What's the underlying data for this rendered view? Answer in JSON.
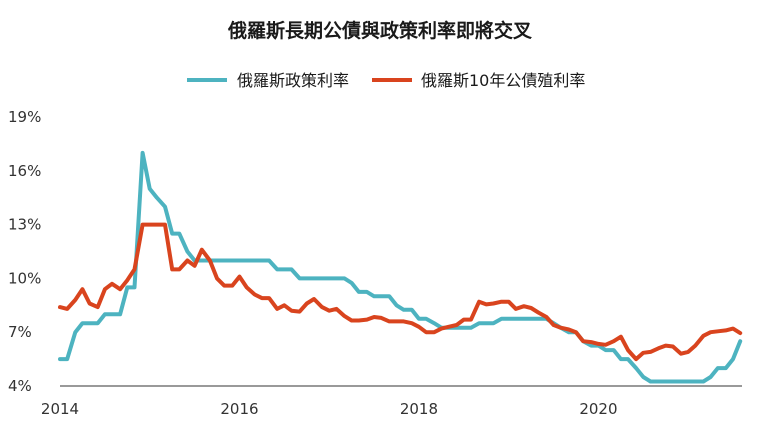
{
  "chart_data": {
    "type": "line",
    "title": "俄羅斯長期公債與政策利率即將交叉",
    "xlabel": "",
    "ylabel": "",
    "xlim": [
      2014.0,
      2021.6
    ],
    "ylim": [
      4,
      19
    ],
    "x_ticks": [
      2014,
      2016,
      2018,
      2020
    ],
    "x_tick_labels": [
      "2014",
      "2016",
      "2018",
      "2020"
    ],
    "y_ticks": [
      4,
      7,
      10,
      13,
      16,
      19
    ],
    "y_tick_labels": [
      "4%",
      "7%",
      "10%",
      "13%",
      "16%",
      "19%"
    ],
    "grid": "none",
    "legend_position": "top-center",
    "series": [
      {
        "name": "俄羅斯政策利率",
        "color": "#4db3c0",
        "points": [
          [
            2014.0,
            5.5
          ],
          [
            2014.08,
            5.5
          ],
          [
            2014.17,
            7.0
          ],
          [
            2014.25,
            7.5
          ],
          [
            2014.33,
            7.5
          ],
          [
            2014.42,
            7.5
          ],
          [
            2014.5,
            8.0
          ],
          [
            2014.58,
            8.0
          ],
          [
            2014.67,
            8.0
          ],
          [
            2014.75,
            9.5
          ],
          [
            2014.83,
            9.5
          ],
          [
            2014.92,
            17.0
          ],
          [
            2015.0,
            15.0
          ],
          [
            2015.08,
            14.5
          ],
          [
            2015.17,
            14.0
          ],
          [
            2015.25,
            12.5
          ],
          [
            2015.33,
            12.5
          ],
          [
            2015.42,
            11.5
          ],
          [
            2015.5,
            11.0
          ],
          [
            2015.58,
            11.0
          ],
          [
            2015.67,
            11.0
          ],
          [
            2015.75,
            11.0
          ],
          [
            2015.83,
            11.0
          ],
          [
            2015.92,
            11.0
          ],
          [
            2016.0,
            11.0
          ],
          [
            2016.08,
            11.0
          ],
          [
            2016.17,
            11.0
          ],
          [
            2016.25,
            11.0
          ],
          [
            2016.33,
            11.0
          ],
          [
            2016.42,
            10.5
          ],
          [
            2016.5,
            10.5
          ],
          [
            2016.58,
            10.5
          ],
          [
            2016.67,
            10.0
          ],
          [
            2016.75,
            10.0
          ],
          [
            2016.83,
            10.0
          ],
          [
            2016.92,
            10.0
          ],
          [
            2017.0,
            10.0
          ],
          [
            2017.08,
            10.0
          ],
          [
            2017.17,
            10.0
          ],
          [
            2017.25,
            9.75
          ],
          [
            2017.33,
            9.25
          ],
          [
            2017.42,
            9.25
          ],
          [
            2017.5,
            9.0
          ],
          [
            2017.58,
            9.0
          ],
          [
            2017.67,
            9.0
          ],
          [
            2017.75,
            8.5
          ],
          [
            2017.83,
            8.25
          ],
          [
            2017.92,
            8.25
          ],
          [
            2018.0,
            7.75
          ],
          [
            2018.08,
            7.75
          ],
          [
            2018.17,
            7.5
          ],
          [
            2018.25,
            7.25
          ],
          [
            2018.33,
            7.25
          ],
          [
            2018.42,
            7.25
          ],
          [
            2018.5,
            7.25
          ],
          [
            2018.58,
            7.25
          ],
          [
            2018.67,
            7.5
          ],
          [
            2018.75,
            7.5
          ],
          [
            2018.83,
            7.5
          ],
          [
            2018.92,
            7.75
          ],
          [
            2019.0,
            7.75
          ],
          [
            2019.08,
            7.75
          ],
          [
            2019.17,
            7.75
          ],
          [
            2019.25,
            7.75
          ],
          [
            2019.33,
            7.75
          ],
          [
            2019.42,
            7.75
          ],
          [
            2019.5,
            7.5
          ],
          [
            2019.58,
            7.25
          ],
          [
            2019.67,
            7.0
          ],
          [
            2019.75,
            7.0
          ],
          [
            2019.83,
            6.5
          ],
          [
            2019.92,
            6.25
          ],
          [
            2020.0,
            6.25
          ],
          [
            2020.08,
            6.0
          ],
          [
            2020.17,
            6.0
          ],
          [
            2020.25,
            5.5
          ],
          [
            2020.33,
            5.5
          ],
          [
            2020.42,
            5.0
          ],
          [
            2020.5,
            4.5
          ],
          [
            2020.58,
            4.25
          ],
          [
            2020.67,
            4.25
          ],
          [
            2020.75,
            4.25
          ],
          [
            2020.83,
            4.25
          ],
          [
            2020.92,
            4.25
          ],
          [
            2021.0,
            4.25
          ],
          [
            2021.08,
            4.25
          ],
          [
            2021.17,
            4.25
          ],
          [
            2021.25,
            4.5
          ],
          [
            2021.33,
            5.0
          ],
          [
            2021.42,
            5.0
          ],
          [
            2021.5,
            5.5
          ],
          [
            2021.58,
            6.5
          ]
        ]
      },
      {
        "name": "俄羅斯10年公債殖利率",
        "color": "#d9441e",
        "points": [
          [
            2014.0,
            8.4
          ],
          [
            2014.08,
            8.3
          ],
          [
            2014.17,
            8.8
          ],
          [
            2014.25,
            9.4
          ],
          [
            2014.33,
            8.6
          ],
          [
            2014.42,
            8.4
          ],
          [
            2014.5,
            9.4
          ],
          [
            2014.58,
            9.7
          ],
          [
            2014.67,
            9.4
          ],
          [
            2014.75,
            9.9
          ],
          [
            2014.83,
            10.5
          ],
          [
            2014.92,
            13.0
          ],
          [
            2015.0,
            13.0
          ],
          [
            2015.08,
            13.0
          ],
          [
            2015.17,
            13.0
          ],
          [
            2015.25,
            10.5
          ],
          [
            2015.33,
            10.5
          ],
          [
            2015.42,
            11.0
          ],
          [
            2015.5,
            10.7
          ],
          [
            2015.58,
            11.6
          ],
          [
            2015.67,
            11.0
          ],
          [
            2015.75,
            10.0
          ],
          [
            2015.83,
            9.6
          ],
          [
            2015.92,
            9.6
          ],
          [
            2016.0,
            10.1
          ],
          [
            2016.08,
            9.5
          ],
          [
            2016.17,
            9.1
          ],
          [
            2016.25,
            8.9
          ],
          [
            2016.33,
            8.9
          ],
          [
            2016.42,
            8.3
          ],
          [
            2016.5,
            8.5
          ],
          [
            2016.58,
            8.2
          ],
          [
            2016.67,
            8.15
          ],
          [
            2016.75,
            8.6
          ],
          [
            2016.83,
            8.85
          ],
          [
            2016.92,
            8.4
          ],
          [
            2017.0,
            8.2
          ],
          [
            2017.08,
            8.3
          ],
          [
            2017.17,
            7.9
          ],
          [
            2017.25,
            7.65
          ],
          [
            2017.33,
            7.65
          ],
          [
            2017.42,
            7.7
          ],
          [
            2017.5,
            7.85
          ],
          [
            2017.58,
            7.8
          ],
          [
            2017.67,
            7.6
          ],
          [
            2017.75,
            7.6
          ],
          [
            2017.83,
            7.6
          ],
          [
            2017.92,
            7.5
          ],
          [
            2018.0,
            7.3
          ],
          [
            2018.08,
            7.0
          ],
          [
            2018.17,
            7.0
          ],
          [
            2018.25,
            7.2
          ],
          [
            2018.33,
            7.3
          ],
          [
            2018.42,
            7.4
          ],
          [
            2018.5,
            7.7
          ],
          [
            2018.58,
            7.7
          ],
          [
            2018.67,
            8.7
          ],
          [
            2018.75,
            8.55
          ],
          [
            2018.83,
            8.6
          ],
          [
            2018.92,
            8.7
          ],
          [
            2019.0,
            8.7
          ],
          [
            2019.08,
            8.3
          ],
          [
            2019.17,
            8.45
          ],
          [
            2019.25,
            8.35
          ],
          [
            2019.33,
            8.1
          ],
          [
            2019.42,
            7.85
          ],
          [
            2019.5,
            7.4
          ],
          [
            2019.58,
            7.25
          ],
          [
            2019.67,
            7.15
          ],
          [
            2019.75,
            7.0
          ],
          [
            2019.83,
            6.5
          ],
          [
            2019.92,
            6.45
          ],
          [
            2020.0,
            6.35
          ],
          [
            2020.08,
            6.3
          ],
          [
            2020.17,
            6.5
          ],
          [
            2020.25,
            6.75
          ],
          [
            2020.33,
            6.0
          ],
          [
            2020.42,
            5.5
          ],
          [
            2020.5,
            5.85
          ],
          [
            2020.58,
            5.9
          ],
          [
            2020.67,
            6.1
          ],
          [
            2020.75,
            6.25
          ],
          [
            2020.83,
            6.2
          ],
          [
            2020.92,
            5.8
          ],
          [
            2021.0,
            5.9
          ],
          [
            2021.08,
            6.25
          ],
          [
            2021.17,
            6.8
          ],
          [
            2021.25,
            7.0
          ],
          [
            2021.33,
            7.05
          ],
          [
            2021.42,
            7.1
          ],
          [
            2021.5,
            7.2
          ],
          [
            2021.58,
            6.95
          ]
        ]
      }
    ]
  }
}
